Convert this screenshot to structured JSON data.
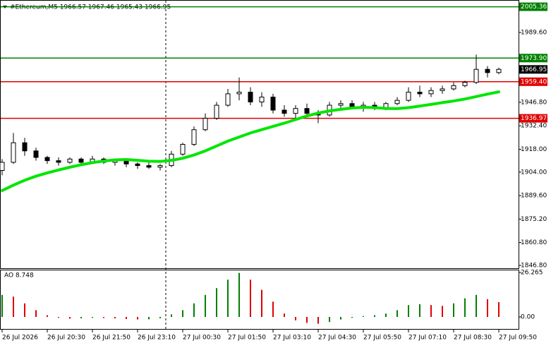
{
  "chart_data": {
    "type": "candlestick",
    "title": "#Ethereum,M5  1966.57 1967.46 1965.43 1966.95",
    "categories": [
      "26 Jul 2026",
      null,
      null,
      null,
      "26 Jul 20:30",
      null,
      null,
      null,
      "26 Jul 21:50",
      null,
      null,
      null,
      "26 Jul 23:10",
      null,
      null,
      null,
      "27 Jul 00:30",
      null,
      null,
      null,
      "27 Jul 01:50",
      null,
      null,
      null,
      "27 Jul 03:10",
      null,
      null,
      null,
      "27 Jul 04:30",
      null,
      null,
      null,
      "27 Jul 05:50",
      null,
      null,
      null,
      "27 Jul 07:10",
      null,
      null,
      null,
      "27 Jul 08:30",
      null,
      null,
      null,
      "27 Jul 09:50"
    ],
    "open": [
      1905,
      1910,
      1922,
      1917,
      1913,
      1911,
      1910,
      1912,
      1910,
      1912,
      1910,
      1911,
      1909,
      1908,
      1907,
      1908,
      1915,
      1921,
      1930,
      1937,
      1945,
      1952,
      1953,
      1947,
      1950,
      1942,
      1940,
      1943,
      1940,
      1939,
      1945,
      1946,
      1944,
      1945,
      1943,
      1946,
      1948,
      1953,
      1952,
      1954,
      1955,
      1957,
      1959,
      1967,
      1965
    ],
    "high": [
      1912,
      1928,
      1925,
      1919,
      1914,
      1913,
      1913,
      1913,
      1914,
      1913,
      1912,
      1912,
      1910,
      1910,
      1909,
      1917,
      1922,
      1932,
      1940,
      1947,
      1955,
      1962,
      1956,
      1953,
      1952,
      1945,
      1945,
      1946,
      1942,
      1947,
      1948,
      1948,
      1947,
      1947,
      1947,
      1950,
      1956,
      1957,
      1956,
      1957,
      1959,
      1960,
      1976,
      1969,
      1968
    ],
    "low": [
      1902,
      1909,
      1914,
      1911,
      1909,
      1908,
      1909,
      1909,
      1909,
      1909,
      1908,
      1907,
      1906,
      1906,
      1905,
      1907,
      1914,
      1920,
      1929,
      1936,
      1944,
      1948,
      1945,
      1944,
      1940,
      1938,
      1937,
      1938,
      1934,
      1938,
      1943,
      1943,
      1941,
      1942,
      1942,
      1945,
      1947,
      1950,
      1950,
      1952,
      1954,
      1956,
      1958,
      1962,
      1964
    ],
    "close": [
      1910,
      1922,
      1917,
      1913,
      1911,
      1910,
      1912,
      1910,
      1912,
      1910,
      1911,
      1909,
      1908,
      1907,
      1908,
      1915,
      1921,
      1930,
      1937,
      1945,
      1952,
      1953,
      1947,
      1950,
      1942,
      1940,
      1943,
      1940,
      1939,
      1945,
      1946,
      1944,
      1945,
      1943,
      1946,
      1948,
      1953,
      1952,
      1954,
      1955,
      1957,
      1959,
      1967,
      1965,
      1967
    ],
    "candle_color": "#000000",
    "ma": {
      "color": "#00e600",
      "values": [
        1892.7,
        1896,
        1899,
        1901.5,
        1903.5,
        1905.3,
        1907,
        1908.5,
        1909.8,
        1910.8,
        1911.5,
        1911.7,
        1911.2,
        1910.7,
        1910.5,
        1911.2,
        1912.5,
        1914.5,
        1917,
        1920,
        1923,
        1925.5,
        1928,
        1930,
        1932,
        1934,
        1936.2,
        1938.4,
        1940.2,
        1941.5,
        1942.5,
        1943.3,
        1943.7,
        1943.5,
        1943,
        1942.9,
        1943.5,
        1944.5,
        1945.5,
        1946.6,
        1947.6,
        1948.8,
        1950.3,
        1951.8,
        1953.2
      ]
    },
    "ylim": [
      1845.07,
      2008.2
    ],
    "yticks": [
      {
        "value": 1846.8,
        "label": "1846.80"
      },
      {
        "value": 1860.8,
        "label": "1860.80"
      },
      {
        "value": 1875.2,
        "label": "1875.20"
      },
      {
        "value": 1889.6,
        "label": "1889.60"
      },
      {
        "value": 1904,
        "label": "1904.00"
      },
      {
        "value": 1918,
        "label": "1918.00"
      },
      {
        "value": 1932.4,
        "label": "1932.40"
      },
      {
        "value": 1946.8,
        "label": "1946.80"
      },
      {
        "value": 1989.6,
        "label": "1989.60"
      }
    ],
    "levels": [
      {
        "price": 2005.36,
        "color": "#008000"
      },
      {
        "price": {
          "value": 1973.9,
          "label": "1973.90"
        },
        "color": "#008000"
      },
      {
        "price": {
          "value": 1959.4,
          "label": "1959.40"
        },
        "color": "#e00000"
      },
      {
        "price": 1936.97,
        "color": "#e00000"
      }
    ],
    "last_price": 1966.95,
    "ao": {
      "label": "AO 8.748",
      "up_color": "#008000",
      "down_color": "#e00000",
      "values": [
        13,
        12,
        8,
        4,
        1,
        -0.5,
        -1,
        -0.8,
        -0.5,
        -0.6,
        -0.9,
        -1.2,
        -1.5,
        -1.4,
        -0.8,
        1.5,
        4,
        8,
        13,
        17,
        22,
        26,
        22,
        16,
        9,
        2,
        -2,
        -3.5,
        -4,
        -3,
        -1.5,
        -0.5,
        0.5,
        1,
        2,
        4,
        7,
        7.5,
        7,
        6.5,
        8,
        11,
        13,
        10.5,
        8.748
      ],
      "ylim": [
        -7.5,
        27.5
      ],
      "yticks": [
        26.265,
        {
          "value": 0,
          "label": "0.00"
        }
      ]
    }
  }
}
